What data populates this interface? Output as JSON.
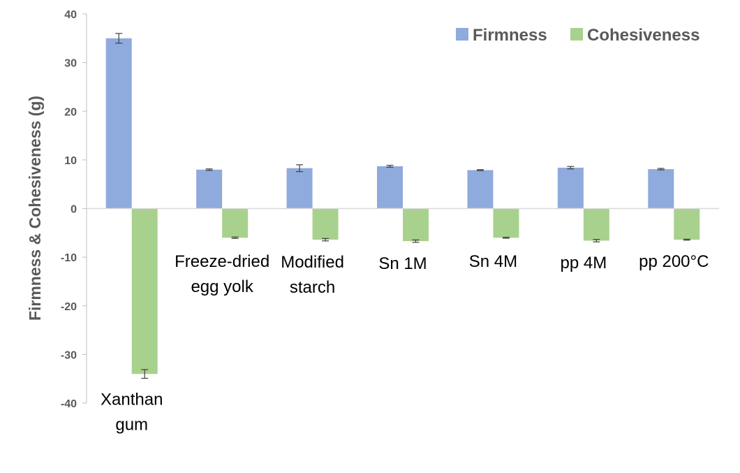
{
  "chart_data": {
    "type": "bar",
    "title": "",
    "xlabel": "",
    "ylabel": "Firmness & Cohesiveness (g)",
    "ylim": [
      -40,
      40
    ],
    "yticks": [
      40,
      30,
      20,
      10,
      0,
      -10,
      -20,
      -30,
      -40
    ],
    "categories": [
      [
        "Xanthan",
        "gum"
      ],
      [
        "Freeze-dried",
        "egg yolk"
      ],
      [
        "Modified",
        "starch"
      ],
      [
        "Sn 1M"
      ],
      [
        "Sn 4M"
      ],
      [
        "pp 4M"
      ],
      [
        "pp 200°C"
      ]
    ],
    "series": [
      {
        "name": "Firmness",
        "color": "#8FAADC",
        "values": [
          35.0,
          8.0,
          8.3,
          8.7,
          7.9,
          8.4,
          8.1
        ],
        "errors": [
          1.0,
          0.15,
          0.7,
          0.2,
          0.1,
          0.25,
          0.15
        ]
      },
      {
        "name": "Cohesiveness",
        "color": "#A9D18E",
        "values": [
          -34.0,
          -6.0,
          -6.4,
          -6.7,
          -6.0,
          -6.6,
          -6.4
        ],
        "errors": [
          0.9,
          0.15,
          0.25,
          0.25,
          0.1,
          0.25,
          0.1
        ]
      }
    ],
    "legend": "top-right",
    "grid": false
  }
}
